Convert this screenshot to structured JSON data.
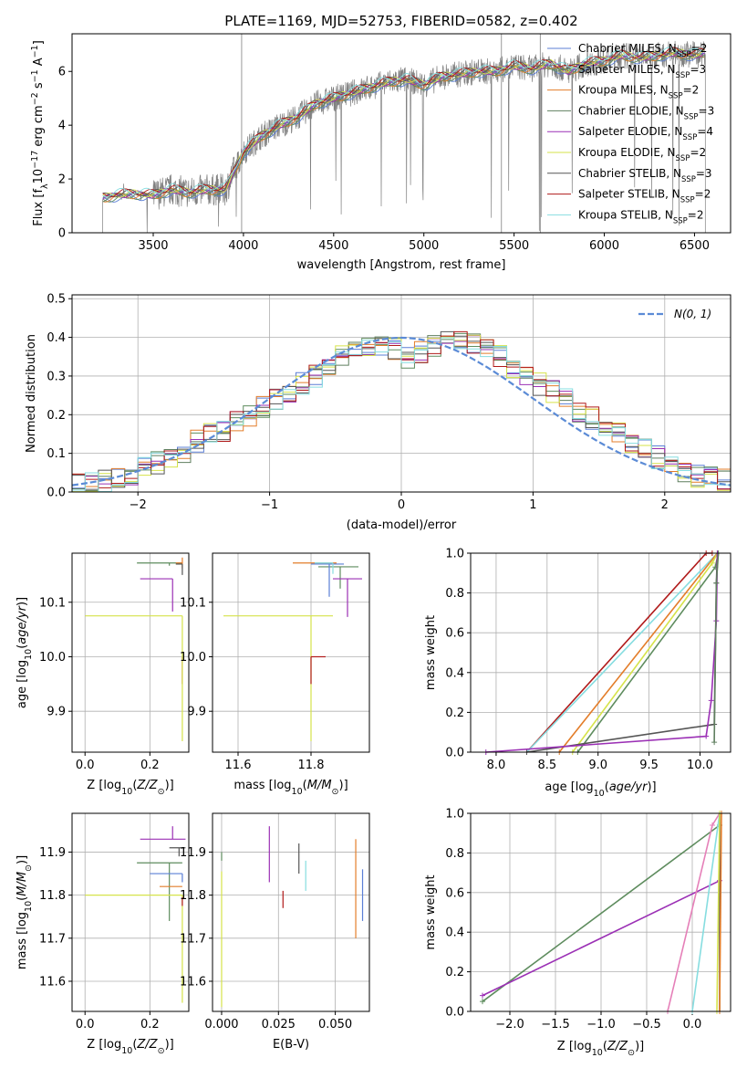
{
  "chart_data": [
    {
      "id": "spectrum",
      "type": "line",
      "title": "PLATE=1169, MJD=52753, FIBERID=0582, z=0.402",
      "xlabel": "wavelength [Angstrom, rest frame]",
      "ylabel": "Flux [f$_\\lambda$10$^{-17}$ erg cm$^{-2}$ s$^{-1}$ A$^{-1}$]",
      "ylabel_text": "Flux [f",
      "xlim": [
        3050,
        6700
      ],
      "ylim": [
        0,
        7.4
      ],
      "xticks": [
        3500,
        4000,
        4500,
        5000,
        5500,
        6000,
        6500
      ],
      "yticks": [
        0,
        2,
        4,
        6
      ],
      "legend_position": "upper right",
      "series": [
        {
          "name": "Chabrier MILES, N$_{SSP}$=2",
          "label": "Chabrier MILES, N",
          "n": "=2",
          "color": "#5b7fd6"
        },
        {
          "name": "Salpeter MILES, N$_{SSP}$=3",
          "label": "Salpeter MILES, N",
          "n": "=3",
          "color": "#5e8c5e"
        },
        {
          "name": "Kroupa MILES, N$_{SSP}$=2",
          "label": "Kroupa MILES, N",
          "n": "=2",
          "color": "#e37d2a"
        },
        {
          "name": "Chabrier ELODIE, N$_{SSP}$=3",
          "label": "Chabrier ELODIE, N",
          "n": "=3",
          "color": "#5f7f5f"
        },
        {
          "name": "Salpeter ELODIE, N$_{SSP}$=4",
          "label": "Salpeter ELODIE, N",
          "n": "=4",
          "color": "#9b30b5"
        },
        {
          "name": "Kroupa ELODIE, N$_{SSP}$=2",
          "label": "Kroupa ELODIE, N",
          "n": "=2",
          "color": "#d6e34a"
        },
        {
          "name": "Chabrier STELIB, N$_{SSP}$=3",
          "label": "Chabrier STELIB, N",
          "n": "=3",
          "color": "#555555"
        },
        {
          "name": "Salpeter STELIB, N$_{SSP}$=2",
          "label": "Salpeter STELIB, N",
          "n": "=2",
          "color": "#b01a1a"
        },
        {
          "name": "Kroupa STELIB, N$_{SSP}$=2",
          "label": "Kroupa STELIB, N",
          "n": "=2",
          "color": "#86dde0"
        }
      ],
      "data_color": "#808080",
      "model_trend": {
        "x": [
          3220,
          3300,
          3400,
          3500,
          3600,
          3700,
          3800,
          3900,
          4000,
          4100,
          4200,
          4300,
          4400,
          4500,
          4600,
          4700,
          4800,
          4900,
          5000,
          5100,
          5200,
          5300,
          5400,
          5500,
          5600,
          5700,
          5800,
          5900,
          6000,
          6100,
          6200,
          6300,
          6400,
          6500,
          6560
        ],
        "y": [
          1.3,
          1.4,
          1.45,
          1.4,
          1.6,
          1.5,
          1.6,
          1.6,
          3.0,
          3.6,
          4.0,
          4.3,
          4.8,
          5.0,
          5.2,
          5.4,
          5.6,
          5.7,
          5.5,
          5.8,
          5.9,
          6.0,
          6.0,
          6.2,
          6.1,
          6.3,
          6.0,
          6.3,
          6.4,
          6.6,
          6.5,
          6.6,
          6.7,
          6.6,
          6.7
        ]
      },
      "data_start": 3220,
      "data_end": 6560
    },
    {
      "id": "residuals",
      "type": "line",
      "xlabel": "(data-model)/error",
      "ylabel": "Normed distribution",
      "xlim": [
        -2.5,
        2.5
      ],
      "ylim": [
        0,
        0.51
      ],
      "xticks": [
        -2,
        -1,
        0,
        1,
        2
      ],
      "xtick_labels": [
        "−2",
        "−1",
        "0",
        "1",
        "2"
      ],
      "yticks": [
        0.0,
        0.1,
        0.2,
        0.3,
        0.4,
        0.5
      ],
      "ytick_labels": [
        "0.0",
        "0.1",
        "0.2",
        "0.3",
        "0.4",
        "0.5"
      ],
      "grid": true,
      "normal_label": "N(0, 1)",
      "normal_color": "#5b8bd6",
      "bin_edges": [
        -2.5,
        -2.4,
        -2.3,
        -2.2,
        -2.1,
        -2.0,
        -1.9,
        -1.8,
        -1.7,
        -1.6,
        -1.5,
        -1.4,
        -1.3,
        -1.2,
        -1.1,
        -1.0,
        -0.9,
        -0.8,
        -0.7,
        -0.6,
        -0.5,
        -0.4,
        -0.3,
        -0.2,
        -0.1,
        0.0,
        0.1,
        0.2,
        0.3,
        0.4,
        0.5,
        0.6,
        0.7,
        0.8,
        0.9,
        1.0,
        1.1,
        1.2,
        1.3,
        1.4,
        1.5,
        1.6,
        1.7,
        1.8,
        1.9,
        2.0,
        2.1,
        2.2,
        2.3,
        2.4,
        2.5
      ],
      "hist_base": [
        0.02,
        0.025,
        0.03,
        0.035,
        0.045,
        0.06,
        0.075,
        0.09,
        0.105,
        0.13,
        0.15,
        0.16,
        0.18,
        0.2,
        0.22,
        0.24,
        0.26,
        0.28,
        0.3,
        0.33,
        0.35,
        0.36,
        0.37,
        0.38,
        0.37,
        0.35,
        0.36,
        0.38,
        0.4,
        0.4,
        0.38,
        0.37,
        0.35,
        0.32,
        0.3,
        0.28,
        0.26,
        0.24,
        0.21,
        0.19,
        0.17,
        0.15,
        0.13,
        0.11,
        0.09,
        0.07,
        0.05,
        0.04,
        0.035,
        0.03
      ]
    },
    {
      "id": "age-vs-Z",
      "type": "scatter",
      "xlabel": "Z [log$_{10}$(Z/Z$_\\odot$)]",
      "ylabel": "age  [log$_{10}$(age/yr)]",
      "xlim": [
        -0.04,
        0.32
      ],
      "ylim": [
        9.825,
        10.19
      ],
      "xticks": [
        0.0,
        0.2
      ],
      "xtick_labels": [
        "0.0",
        "0.2"
      ],
      "yticks": [
        9.9,
        10.0,
        10.1
      ],
      "ytick_labels": [
        "9.9",
        "10.0",
        "10.1"
      ],
      "points": [
        {
          "x": 0.26,
          "y": 10.172,
          "xerr": [
            0.1,
            0.04
          ],
          "yerr": [
            0.005,
            0.0
          ],
          "color": "#5e8c5e"
        },
        {
          "x": 0.3,
          "y": 10.172,
          "xerr": [
            0.02,
            0.0
          ],
          "yerr": [
            0.01,
            0.01
          ],
          "color": "#e37d2a"
        },
        {
          "x": 0.3,
          "y": 10.0,
          "xerr": [
            0.0,
            0.0
          ],
          "yerr": [
            0.05,
            0.0
          ],
          "color": "#b01a1a"
        },
        {
          "x": 0.3,
          "y": 10.075,
          "xerr": [
            0.3,
            0.0
          ],
          "yerr": [
            0.23,
            0.0
          ],
          "color": "#d6e34a"
        },
        {
          "x": 0.27,
          "y": 10.143,
          "xerr": [
            0.1,
            0.0
          ],
          "yerr": [
            0.06,
            0.0
          ],
          "color": "#9b30b5"
        },
        {
          "x": 0.3,
          "y": 10.17,
          "xerr": [
            0.02,
            0.0
          ],
          "yerr": [
            0.02,
            0.0
          ],
          "color": "#555555"
        },
        {
          "x": 0.3,
          "y": 10.165,
          "xerr": [
            0.0,
            0.0
          ],
          "yerr": [
            0.0,
            0.0
          ],
          "color": "#86dde0"
        }
      ]
    },
    {
      "id": "age-vs-mass",
      "type": "scatter",
      "xlabel": "mass [log$_{10}$(M/M$_\\odot$)]",
      "ylabel": "",
      "xlim": [
        11.53,
        11.96
      ],
      "ylim": [
        9.825,
        10.19
      ],
      "xticks": [
        11.6,
        11.8
      ],
      "xtick_labels": [
        "11.6",
        "11.8"
      ],
      "yticks": [
        9.9,
        10.0,
        10.1
      ],
      "ytick_labels": [
        "9.9",
        "10.0",
        "10.1"
      ],
      "points": [
        {
          "x": 11.82,
          "y": 10.172,
          "xerr": [
            0.07,
            0.05
          ],
          "yerr": [
            0.0,
            0.0
          ],
          "color": "#e37d2a"
        },
        {
          "x": 11.88,
          "y": 10.165,
          "xerr": [
            0.06,
            0.05
          ],
          "yerr": [
            0.04,
            0.0
          ],
          "color": "#5e8c5e"
        },
        {
          "x": 11.9,
          "y": 10.143,
          "xerr": [
            0.04,
            0.04
          ],
          "yerr": [
            0.07,
            0.0
          ],
          "color": "#9b30b5"
        },
        {
          "x": 11.85,
          "y": 10.17,
          "xerr": [
            0.05,
            0.04
          ],
          "yerr": [
            0.06,
            0.0
          ],
          "color": "#5b7fd6"
        },
        {
          "x": 11.8,
          "y": 10.075,
          "xerr": [
            0.24,
            0.06
          ],
          "yerr": [
            0.23,
            0.0
          ],
          "color": "#d6e34a"
        },
        {
          "x": 11.8,
          "y": 10.0,
          "xerr": [
            0.0,
            0.04
          ],
          "yerr": [
            0.05,
            0.0
          ],
          "color": "#b01a1a"
        },
        {
          "x": 11.86,
          "y": 10.172,
          "xerr": [
            0.05,
            0.0
          ],
          "yerr": [
            0.02,
            0.0
          ],
          "color": "#86dde0"
        }
      ]
    },
    {
      "id": "weight-vs-age",
      "type": "line",
      "xlabel": "age  [log$_{10}$(age/yr)]",
      "ylabel": "mass weight",
      "xlim": [
        7.75,
        10.3
      ],
      "ylim": [
        0,
        1
      ],
      "xticks": [
        8.0,
        8.5,
        9.0,
        9.5,
        10.0
      ],
      "xtick_labels": [
        "8.0",
        "8.5",
        "9.0",
        "9.5",
        "10.0"
      ],
      "yticks": [
        0.0,
        0.2,
        0.4,
        0.6,
        0.8,
        1.0
      ],
      "ytick_labels": [
        "0.0",
        "0.2",
        "0.4",
        "0.6",
        "0.8",
        "1.0"
      ],
      "grid": true,
      "series": [
        {
          "color": "#b01a1a",
          "x": [
            8.3,
            10.06,
            10.12
          ],
          "y": [
            0.0,
            1.0,
            1.0
          ]
        },
        {
          "color": "#86dde0",
          "x": [
            8.3,
            10.17
          ],
          "y": [
            0.0,
            1.0
          ]
        },
        {
          "color": "#e37d2a",
          "x": [
            8.62,
            10.17
          ],
          "y": [
            0.0,
            1.0
          ]
        },
        {
          "color": "#d6e34a",
          "x": [
            8.75,
            10.12,
            10.17
          ],
          "y": [
            0.0,
            0.95,
            1.0
          ]
        },
        {
          "color": "#5e8c5e",
          "x": [
            8.8,
            10.15,
            10.18
          ],
          "y": [
            0.0,
            0.93,
            1.0
          ]
        },
        {
          "color": "#555555",
          "x": [
            8.3,
            10.14,
            10.16,
            10.17
          ],
          "y": [
            0.0,
            0.14,
            0.85,
            1.0
          ]
        },
        {
          "color": "#9b30b5",
          "x": [
            7.9,
            10.06,
            10.11,
            10.16,
            10.17
          ],
          "y": [
            0.0,
            0.08,
            0.26,
            0.66,
            1.0
          ]
        },
        {
          "color": "#5f7f5f",
          "x": [
            10.14,
            10.16,
            10.18
          ],
          "y": [
            0.05,
            0.85,
            1.0
          ]
        }
      ]
    },
    {
      "id": "mass-vs-Z",
      "type": "scatter",
      "xlabel": "Z [log$_{10}$(Z/Z$_\\odot$)]",
      "ylabel": "mass [log$_{10}$(M/M$_\\odot$)]",
      "xlim": [
        -0.04,
        0.32
      ],
      "ylim": [
        11.53,
        11.99
      ],
      "xticks": [
        0.0,
        0.2
      ],
      "xtick_labels": [
        "0.0",
        "0.2"
      ],
      "yticks": [
        11.6,
        11.7,
        11.8,
        11.9
      ],
      "ytick_labels": [
        "11.6",
        "11.7",
        "11.8",
        "11.9"
      ],
      "points": [
        {
          "x": 0.27,
          "y": 11.93,
          "xerr": [
            0.1,
            0.04
          ],
          "yerr": [
            0.0,
            0.03
          ],
          "color": "#9b30b5"
        },
        {
          "x": 0.29,
          "y": 11.91,
          "xerr": [
            0.03,
            0.02
          ],
          "yerr": [
            0.02,
            0.0
          ],
          "color": "#555555"
        },
        {
          "x": 0.26,
          "y": 11.875,
          "xerr": [
            0.1,
            0.04
          ],
          "yerr": [
            0.135,
            0.0
          ],
          "color": "#5e8c5e"
        },
        {
          "x": 0.3,
          "y": 11.85,
          "xerr": [
            0.1,
            0.0
          ],
          "yerr": [
            0.02,
            0.0
          ],
          "color": "#5b7fd6"
        },
        {
          "x": 0.3,
          "y": 11.82,
          "xerr": [
            0.07,
            0.0
          ],
          "yerr": [
            0.0,
            0.0
          ],
          "color": "#e37d2a"
        },
        {
          "x": 0.3,
          "y": 11.8,
          "xerr": [
            0.3,
            0.0
          ],
          "yerr": [
            0.25,
            0.0
          ],
          "color": "#d6e34a"
        },
        {
          "x": 0.3,
          "y": 11.795,
          "xerr": [
            0.0,
            0.0
          ],
          "yerr": [
            0.02,
            0.0
          ],
          "color": "#b01a1a"
        }
      ]
    },
    {
      "id": "mass-vs-EBV",
      "type": "scatter",
      "xlabel": "E(B-V)",
      "ylabel": "",
      "xlim": [
        -0.004,
        0.065
      ],
      "ylim": [
        11.53,
        11.99
      ],
      "xticks": [
        0.0,
        0.025,
        0.05
      ],
      "xtick_labels": [
        "0.000",
        "0.025",
        "0.050"
      ],
      "yticks": [
        11.6,
        11.7,
        11.8,
        11.9
      ],
      "ytick_labels": [
        "11.6",
        "11.7",
        "11.8",
        "11.9"
      ],
      "points": [
        {
          "x": 0.0,
          "y": 11.855,
          "yerr": [
            0.315,
            0.0
          ],
          "color": "#d6e34a"
        },
        {
          "x": 0.0,
          "y": 11.88,
          "yerr": [
            0.0,
            0.02
          ],
          "color": "#5e8c5e"
        },
        {
          "x": 0.021,
          "y": 11.9,
          "yerr": [
            0.07,
            0.06
          ],
          "color": "#9b30b5"
        },
        {
          "x": 0.027,
          "y": 11.8,
          "yerr": [
            0.03,
            0.01
          ],
          "color": "#b01a1a"
        },
        {
          "x": 0.034,
          "y": 11.89,
          "yerr": [
            0.04,
            0.03
          ],
          "color": "#555555"
        },
        {
          "x": 0.037,
          "y": 11.85,
          "yerr": [
            0.04,
            0.03
          ],
          "color": "#86dde0"
        },
        {
          "x": 0.059,
          "y": 11.82,
          "yerr": [
            0.12,
            0.11
          ],
          "color": "#e37d2a"
        },
        {
          "x": 0.062,
          "y": 11.8,
          "yerr": [
            0.06,
            0.06
          ],
          "color": "#5b7fd6"
        }
      ]
    },
    {
      "id": "weight-vs-Z",
      "type": "line",
      "xlabel": "Z [log$_{10}$(Z/Z$_\\odot$)]",
      "ylabel": "mass weight",
      "xlim": [
        -2.43,
        0.42
      ],
      "ylim": [
        0,
        1
      ],
      "xticks": [
        -2.0,
        -1.5,
        -1.0,
        -0.5,
        0.0
      ],
      "xtick_labels": [
        "−2.0",
        "−1.5",
        "−1.0",
        "−0.5",
        "0.0"
      ],
      "yticks": [
        0.0,
        0.2,
        0.4,
        0.6,
        0.8,
        1.0
      ],
      "ytick_labels": [
        "0.0",
        "0.2",
        "0.4",
        "0.6",
        "0.8",
        "1.0"
      ],
      "grid": true,
      "series": [
        {
          "color": "#5e8c5e",
          "x": [
            -2.3,
            0.3,
            0.3
          ],
          "y": [
            0.05,
            0.94,
            1.0
          ]
        },
        {
          "color": "#9b30b5",
          "x": [
            -2.3,
            0.3,
            0.3
          ],
          "y": [
            0.08,
            0.66,
            1.0
          ]
        },
        {
          "color": "#e57fb8",
          "x": [
            -0.27,
            0.22,
            0.3
          ],
          "y": [
            0.0,
            0.94,
            1.0
          ]
        },
        {
          "color": "#86dde0",
          "x": [
            0.0,
            0.3
          ],
          "y": [
            0.0,
            1.0
          ]
        },
        {
          "color": "#555555",
          "x": [
            0.3,
            0.3
          ],
          "y": [
            0.0,
            1.0
          ]
        },
        {
          "color": "#d6e34a",
          "x": [
            0.27,
            0.3
          ],
          "y": [
            0.0,
            1.0
          ]
        },
        {
          "color": "#e37d2a",
          "x": [
            0.3,
            0.32
          ],
          "y": [
            0.0,
            1.0
          ]
        }
      ]
    }
  ]
}
